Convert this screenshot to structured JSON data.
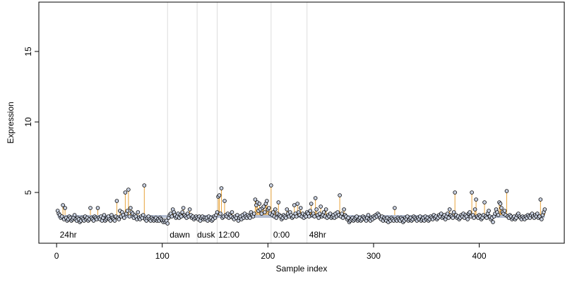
{
  "chart_data": {
    "type": "index-scatter",
    "x_label": "Sample index",
    "y_label": "Expression",
    "xlim": [
      -16.8,
      480.5
    ],
    "ylim": [
      1.4,
      18.5
    ],
    "xticks": [
      0,
      100,
      200,
      300,
      400
    ],
    "yticks": [
      5,
      10,
      15
    ],
    "point_color": "#c8d0e0",
    "stem_color": "#e8a33a",
    "band_color": "#b4bed2",
    "reference_band": [
      3.2,
      3.4
    ],
    "vlines": [
      105,
      133,
      152,
      203,
      237
    ],
    "annotations": [
      {
        "x": 3,
        "y": 1.95,
        "text": "24hr"
      },
      {
        "x": 107,
        "y": 1.95,
        "text": "dawn"
      },
      {
        "x": 133,
        "y": 1.95,
        "text": "dusk"
      },
      {
        "x": 153,
        "y": 1.95,
        "text": "12:00"
      },
      {
        "x": 205,
        "y": 1.95,
        "text": "0:00"
      },
      {
        "x": 239,
        "y": 1.95,
        "text": "48hr"
      }
    ],
    "values": [
      3.7,
      3.5,
      3.4,
      3.2,
      3.3,
      4.1,
      3.1,
      3.9,
      3.2,
      3.0,
      3.1,
      3.3,
      3.2,
      3.0,
      3.1,
      3.2,
      3.4,
      3.1,
      3.0,
      3.2,
      3.1,
      2.9,
      3.0,
      3.2,
      3.1,
      3.0,
      3.3,
      3.1,
      3.2,
      3.0,
      3.1,
      3.9,
      3.2,
      3.1,
      3.0,
      3.3,
      3.2,
      3.1,
      3.9,
      3.2,
      3.1,
      3.3,
      3.0,
      3.2,
      3.4,
      3.0,
      3.1,
      3.2,
      3.3,
      3.1,
      3.0,
      3.4,
      3.2,
      3.1,
      3.0,
      3.3,
      4.4,
      3.2,
      3.1,
      3.7,
      3.3,
      3.6,
      3.4,
      3.2,
      5.0,
      3.5,
      3.7,
      5.2,
      3.3,
      3.9,
      3.6,
      3.5,
      3.2,
      3.4,
      3.3,
      3.1,
      3.6,
      3.2,
      3.1,
      3.3,
      3.2,
      3.4,
      5.5,
      3.1,
      3.0,
      3.2,
      3.3,
      3.1,
      3.0,
      3.2,
      3.1,
      3.0,
      3.1,
      3.2,
      3.0,
      3.1,
      3.0,
      3.2,
      3.1,
      3.0,
      2.9,
      3.0,
      2.9,
      3.0,
      2.8,
      3.2,
      3.4,
      3.5,
      3.3,
      3.8,
      3.6,
      3.4,
      3.2,
      3.3,
      3.5,
      3.2,
      3.4,
      3.3,
      3.6,
      3.9,
      3.4,
      3.3,
      3.2,
      3.5,
      3.3,
      3.8,
      3.4,
      3.2,
      3.3,
      3.1,
      3.2,
      3.3,
      3.2,
      3.1,
      3.3,
      3.0,
      3.2,
      3.3,
      3.1,
      3.2,
      3.1,
      3.2,
      3.0,
      3.3,
      3.1,
      3.2,
      3.0,
      3.1,
      3.3,
      3.2,
      3.4,
      3.6,
      4.7,
      4.8,
      3.5,
      5.3,
      3.2,
      3.3,
      4.4,
      3.4,
      3.3,
      3.5,
      3.2,
      3.4,
      3.3,
      3.6,
      3.2,
      3.1,
      3.3,
      3.2,
      3.4,
      3.0,
      3.2,
      3.3,
      3.1,
      3.4,
      3.2,
      3.5,
      3.3,
      3.2,
      3.4,
      3.3,
      3.2,
      3.6,
      3.4,
      3.3,
      3.5,
      4.5,
      4.1,
      4.3,
      3.7,
      4.2,
      3.8,
      3.5,
      3.9,
      4.0,
      3.6,
      4.2,
      4.4,
      3.8,
      3.9,
      3.5,
      5.5,
      3.4,
      3.6,
      3.3,
      3.8,
      3.2,
      3.5,
      4.3,
      3.4,
      3.3,
      3.1,
      3.2,
      3.4,
      3.3,
      3.2,
      3.8,
      3.5,
      3.3,
      3.6,
      3.4,
      3.2,
      3.3,
      4.1,
      3.5,
      3.3,
      4.2,
      3.6,
      3.4,
      3.9,
      3.3,
      3.5,
      3.2,
      3.4,
      3.3,
      3.6,
      3.5,
      3.3,
      3.7,
      4.2,
      3.4,
      3.5,
      3.3,
      4.6,
      3.8,
      3.4,
      3.2,
      3.5,
      4.0,
      3.3,
      3.4,
      3.6,
      3.3,
      3.8,
      3.2,
      3.4,
      3.3,
      3.5,
      3.2,
      3.3,
      3.4,
      3.2,
      3.5,
      3.3,
      3.6,
      3.4,
      4.8,
      3.3,
      3.5,
      3.2,
      3.8,
      3.4,
      3.3,
      3.1,
      3.2,
      2.9,
      3.0,
      3.1,
      3.2,
      3.0,
      3.1,
      3.2,
      3.3,
      3.0,
      3.1,
      3.2,
      3.0,
      3.1,
      3.3,
      3.2,
      3.1,
      3.0,
      3.2,
      3.4,
      3.1,
      3.0,
      3.2,
      3.1,
      3.3,
      3.2,
      3.4,
      3.3,
      3.5,
      3.4,
      3.2,
      3.1,
      3.3,
      3.0,
      3.2,
      3.1,
      3.0,
      3.2,
      2.9,
      3.1,
      3.0,
      3.2,
      3.1,
      3.0,
      3.9,
      3.1,
      3.0,
      3.2,
      3.1,
      3.0,
      3.2,
      3.1,
      2.9,
      3.0,
      3.2,
      3.1,
      3.3,
      3.0,
      3.1,
      3.2,
      3.0,
      3.1,
      3.3,
      3.2,
      3.1,
      3.0,
      3.2,
      3.1,
      3.3,
      3.0,
      3.1,
      3.2,
      3.0,
      3.3,
      3.1,
      3.2,
      3.0,
      3.1,
      3.3,
      3.2,
      3.1,
      3.4,
      3.2,
      3.3,
      3.1,
      3.2,
      3.4,
      3.3,
      3.5,
      3.2,
      3.3,
      3.4,
      3.1,
      3.3,
      3.5,
      3.2,
      3.8,
      3.4,
      3.3,
      3.2,
      3.6,
      5.0,
      3.4,
      3.2,
      3.3,
      3.1,
      3.2,
      3.4,
      3.3,
      3.5,
      3.2,
      3.4,
      3.3,
      3.1,
      3.5,
      3.6,
      3.3,
      5.0,
      3.4,
      3.2,
      3.8,
      4.5,
      3.3,
      3.2,
      3.4,
      3.3,
      3.1,
      3.2,
      3.4,
      4.3,
      3.3,
      3.2,
      3.5,
      3.7,
      3.3,
      3.1,
      3.2,
      2.9,
      3.3,
      3.5,
      3.8,
      3.6,
      3.4,
      4.3,
      4.2,
      3.9,
      3.6,
      3.5,
      3.7,
      3.4,
      5.1,
      3.3,
      3.2,
      3.4,
      3.3,
      3.1,
      3.2,
      3.3,
      3.1,
      3.2,
      3.4,
      3.5,
      3.3,
      3.2,
      3.1,
      3.3,
      3.2,
      3.1,
      3.3,
      3.2,
      3.4,
      3.3,
      3.2,
      3.4,
      3.5,
      3.3,
      3.2,
      3.4,
      3.3,
      3.5,
      3.2,
      3.3,
      4.5,
      3.1,
      3.4,
      3.6,
      3.8
    ]
  }
}
